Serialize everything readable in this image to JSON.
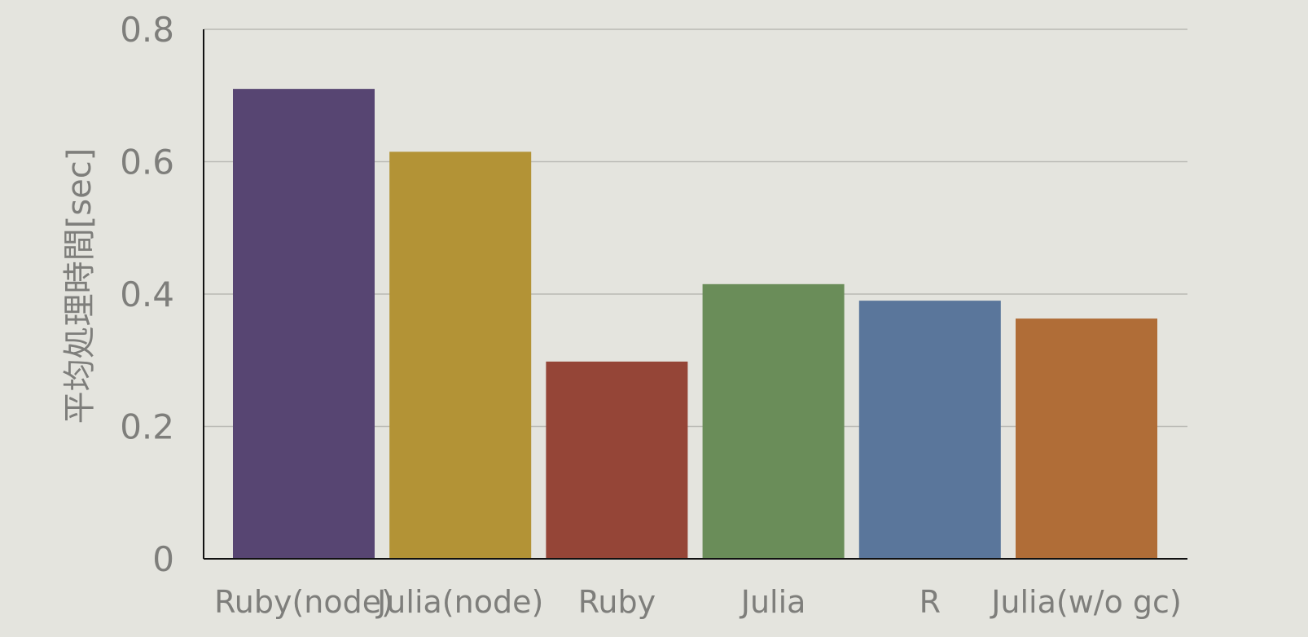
{
  "chart_data": {
    "type": "bar",
    "categories": [
      "Ruby(node)",
      "Julia(node)",
      "Ruby",
      "Julia",
      "R",
      "Julia(w/o gc)"
    ],
    "values": [
      0.71,
      0.615,
      0.298,
      0.415,
      0.39,
      0.363
    ],
    "colors": [
      "#574572",
      "#b39336",
      "#954537",
      "#6a8d59",
      "#5a769b",
      "#b06d37"
    ],
    "ylabel": "平均処理時間[sec]",
    "ylim": [
      0,
      0.8
    ],
    "yticks": [
      0,
      0.2,
      0.4,
      0.6,
      0.8
    ],
    "ytick_labels": [
      "0",
      "0.2",
      "0.4",
      "0.6",
      "0.8"
    ],
    "grid": true,
    "legend": false
  }
}
